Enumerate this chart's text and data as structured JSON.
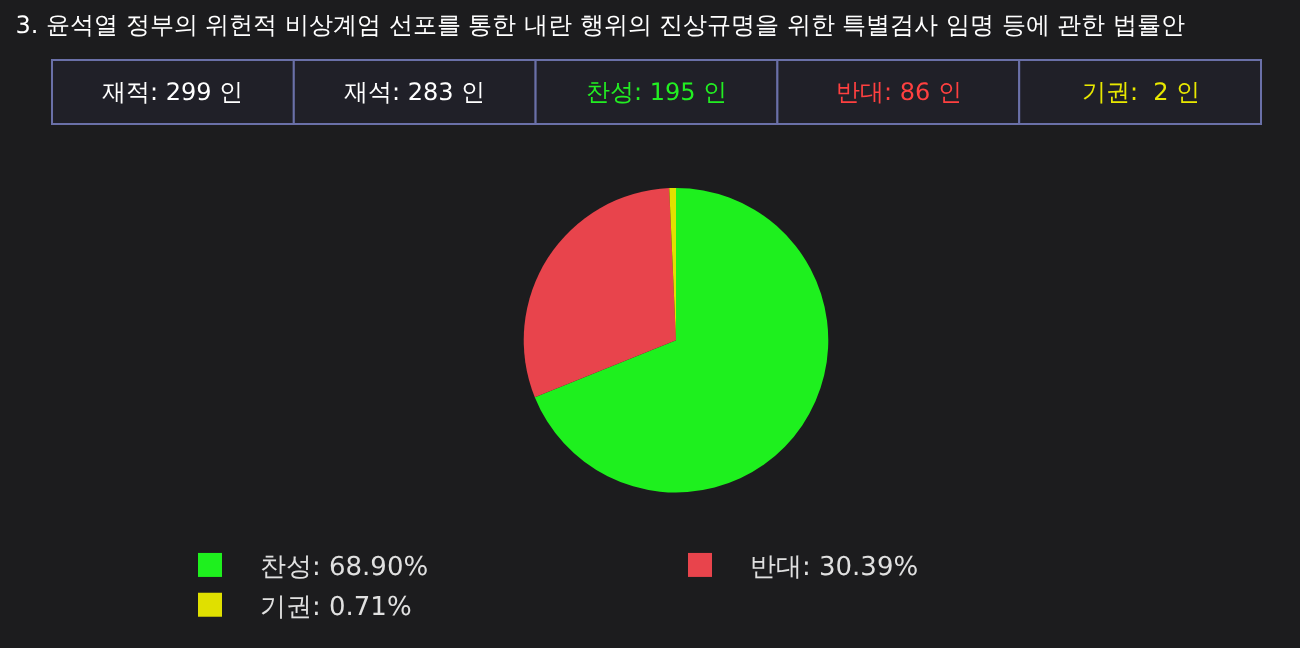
{
  "chart_data": {
    "type": "pie",
    "title": "3. 윤석열 정부의 위헌적 비상계엄 선포를 통한 내란 행위의 진상규명을 위한 특별검사 임명 등에 관한 법률안",
    "categories": [
      "찬성",
      "반대",
      "기권"
    ],
    "values": [
      68.9,
      30.39,
      0.71
    ],
    "value_labels": [
      "68.90%",
      "30.39%",
      "0.71%"
    ],
    "colors": [
      "#1ef01e",
      "#e8444c",
      "#e0e000"
    ],
    "annotations": [
      "재적: 299 인",
      "재석: 283 인",
      "찬성: 195 인",
      "반대: 86 인",
      "기권:  2 인"
    ],
    "legend": "bottom"
  }
}
